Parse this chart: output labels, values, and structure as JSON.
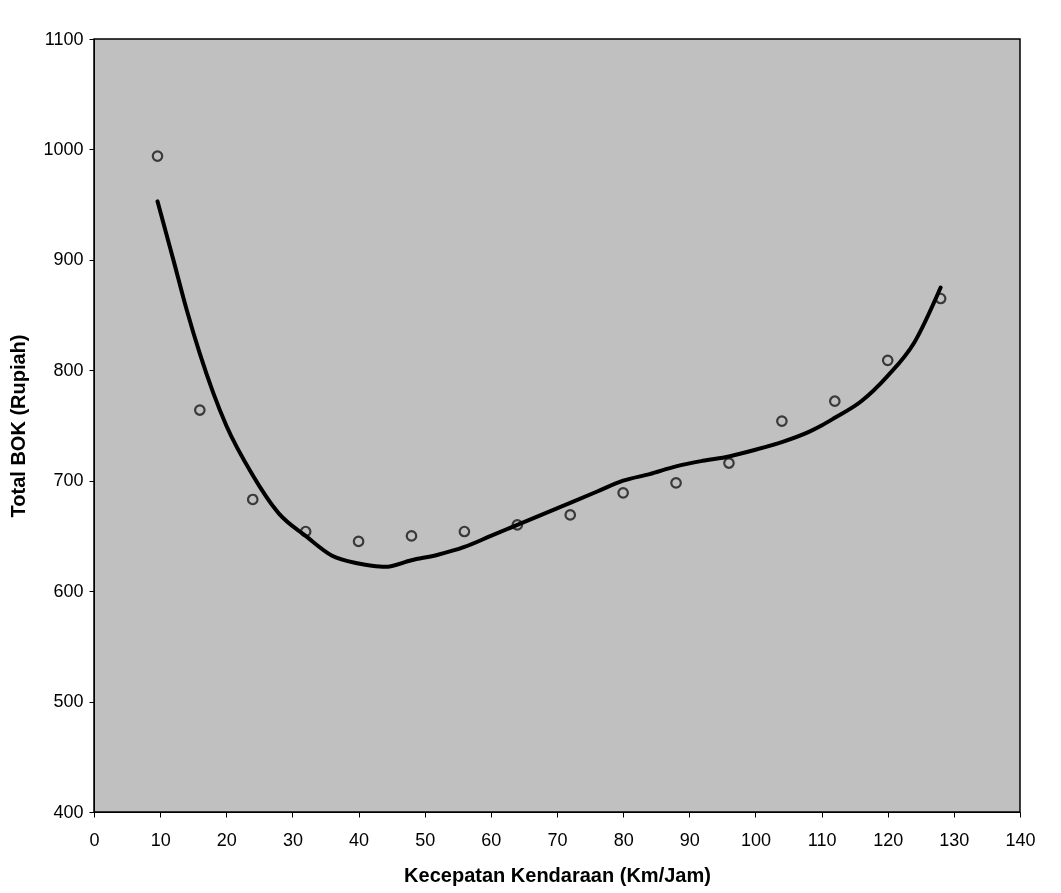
{
  "chart_data": {
    "type": "scatter",
    "xlabel": "Kecepatan Kendaraan (Km/Jam)",
    "ylabel": "Total BOK  (Rupiah)",
    "xlim": [
      0,
      140
    ],
    "xticks": [
      0,
      10,
      20,
      30,
      40,
      50,
      60,
      70,
      80,
      90,
      100,
      110,
      120,
      130,
      140
    ],
    "ylim": [
      400,
      1100
    ],
    "yticks": [
      400,
      500,
      600,
      700,
      800,
      900,
      1000,
      1100
    ],
    "grid": false,
    "series": [
      {
        "color": "#000000",
        "marker": "circle",
        "x": [
          9.6,
          16,
          24,
          32,
          40,
          48,
          56,
          64,
          72,
          80,
          88,
          96,
          104,
          112,
          120,
          128
        ],
        "values": [
          994,
          764,
          683,
          654,
          645,
          650,
          654,
          660,
          669,
          689,
          698,
          716,
          754,
          772,
          809,
          865
        ]
      },
      {
        "type": "line",
        "color": "#000000",
        "line_style": "solid",
        "x": [
          9.6,
          12,
          14,
          16,
          18,
          20,
          24,
          28,
          32,
          36,
          40,
          42,
          44,
          48,
          52,
          56,
          60,
          64,
          68,
          72,
          76,
          80,
          84,
          88,
          92,
          96,
          100,
          104,
          108,
          110,
          112,
          116,
          120,
          124,
          128
        ],
        "values": [
          953,
          900,
          855,
          815,
          780,
          750,
          705,
          670,
          650,
          632,
          625,
          623,
          622,
          628,
          633,
          640,
          650,
          660,
          670,
          680,
          690,
          700,
          706,
          713,
          718,
          722,
          728,
          735,
          744,
          750,
          757,
          772,
          795,
          825,
          875
        ]
      }
    ]
  }
}
